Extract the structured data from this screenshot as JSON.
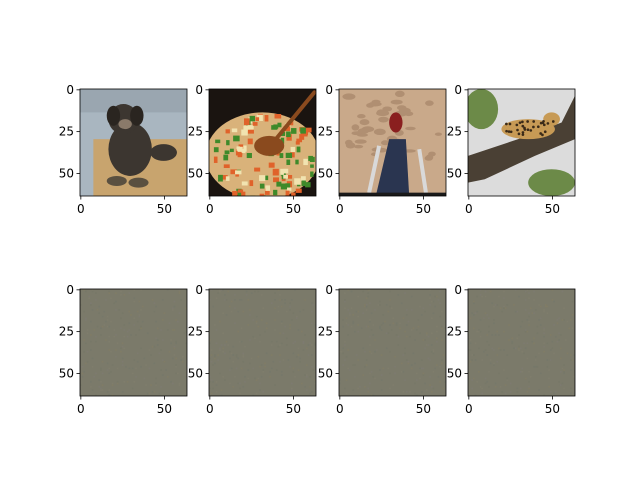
{
  "chart_data": {
    "type": "image_grid",
    "rows": 2,
    "cols": 4,
    "image_size": [
      64,
      64
    ],
    "xticks": [
      0,
      50
    ],
    "yticks": [
      0,
      25,
      50
    ],
    "grid": false,
    "panels": [
      {
        "row": 0,
        "col": 0,
        "content": "dog-photo",
        "palette": {
          "sky": "#9aa6b0",
          "bg": "#a9b6c0",
          "subject": "#3c3630",
          "ground": "#c8a46e",
          "accent": "#5a5040"
        }
      },
      {
        "row": 0,
        "col": 1,
        "content": "stir-fry-vegetables-photo",
        "palette": {
          "bg": "#1a1410",
          "subject": "#d9b27a",
          "spoon": "#8a4a1e",
          "accent1": "#3f8a2a",
          "accent2": "#e0622a",
          "accent3": "#f1e3b0"
        }
      },
      {
        "row": 0,
        "col": 2,
        "content": "sand-footsteps-photo",
        "palette": {
          "bg": "#c9a98a",
          "subject": "#2a3550",
          "accent": "#8a1f1f",
          "poles": "#d9d9d9"
        }
      },
      {
        "row": 0,
        "col": 3,
        "content": "leopard-on-branch-photo",
        "palette": {
          "bg": "#dcdcdc",
          "branch": "#4a4034",
          "subject": "#c79a55",
          "foliage": "#6c8a48"
        }
      },
      {
        "row": 1,
        "col": 0,
        "content": "reconstruction-noise",
        "palette": {
          "base": "#7b7a6a"
        }
      },
      {
        "row": 1,
        "col": 1,
        "content": "reconstruction-noise",
        "palette": {
          "base": "#7b7a6a"
        }
      },
      {
        "row": 1,
        "col": 2,
        "content": "reconstruction-noise",
        "palette": {
          "base": "#7b7a6a"
        }
      },
      {
        "row": 1,
        "col": 3,
        "content": "reconstruction-noise",
        "palette": {
          "base": "#7b7a6a"
        }
      }
    ]
  }
}
